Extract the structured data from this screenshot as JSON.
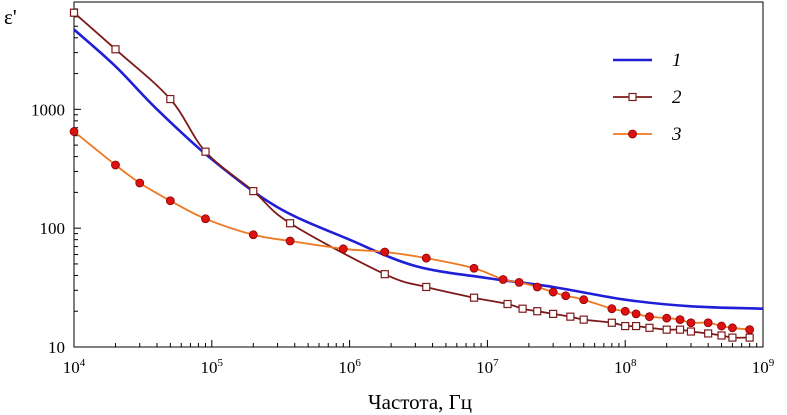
{
  "chart_data": {
    "type": "line",
    "xlabel": "Частота, Гц",
    "ylabel": "ε'",
    "x_scale": "log",
    "y_scale": "log",
    "xlim": [
      10000,
      1000000000
    ],
    "ylim": [
      10,
      8000
    ],
    "x_ticks": [
      {
        "base": "10",
        "exp": "4",
        "value": 10000
      },
      {
        "base": "10",
        "exp": "5",
        "value": 100000
      },
      {
        "base": "10",
        "exp": "6",
        "value": 1000000
      },
      {
        "base": "10",
        "exp": "7",
        "value": 10000000
      },
      {
        "base": "10",
        "exp": "8",
        "value": 100000000
      },
      {
        "base": "10",
        "exp": "9",
        "value": 1000000000
      }
    ],
    "y_ticks": [
      {
        "label": "10",
        "value": 10
      },
      {
        "label": "100",
        "value": 100
      },
      {
        "label": "1000",
        "value": 1000
      }
    ],
    "grid": false,
    "legend_position": "top-right",
    "series": [
      {
        "name": "1",
        "color": "#1f1fd8",
        "marker": "none",
        "x": [
          10000,
          20000,
          40000,
          100000,
          300000,
          1000000,
          3000000,
          10000000,
          30000000,
          100000000,
          300000000,
          1000000000
        ],
        "y": [
          4700,
          2300,
          1000,
          380,
          150,
          80,
          48,
          38,
          32,
          25,
          22,
          21
        ]
      },
      {
        "name": "2",
        "color": "#7d1a1a",
        "marker": "open-square",
        "x": [
          10000,
          20000,
          50000,
          90000,
          200000,
          370000,
          1800000,
          3600000,
          8000000,
          14000000,
          18000000,
          23000000,
          30000000,
          40000000,
          50000000,
          80000000,
          100000000,
          120000000,
          150000000,
          200000000,
          250000000,
          300000000,
          400000000,
          500000000,
          600000000,
          800000000
        ],
        "y": [
          6500,
          3200,
          1220,
          440,
          205,
          110,
          41,
          32,
          26,
          23,
          21,
          20,
          19,
          18,
          17,
          16,
          15,
          15,
          14.5,
          14,
          14,
          13.5,
          13,
          12.5,
          12,
          12
        ]
      },
      {
        "name": "3",
        "color": "#f07820",
        "marker": "filled-circle",
        "marker_fill": "#dd1111",
        "x": [
          10000,
          20000,
          30000,
          50000,
          90000,
          200000,
          370000,
          900000,
          1800000,
          3600000,
          8000000,
          13000000,
          17000000,
          23000000,
          30000000,
          37000000,
          50000000,
          80000000,
          100000000,
          120000000,
          150000000,
          200000000,
          250000000,
          300000000,
          400000000,
          500000000,
          600000000,
          800000000
        ],
        "y": [
          650,
          340,
          240,
          170,
          120,
          88,
          78,
          67,
          63,
          56,
          46,
          37,
          35,
          32,
          29,
          27,
          25,
          21,
          20,
          19,
          18,
          17.5,
          17,
          16,
          16,
          15,
          14.5,
          14
        ]
      }
    ]
  }
}
